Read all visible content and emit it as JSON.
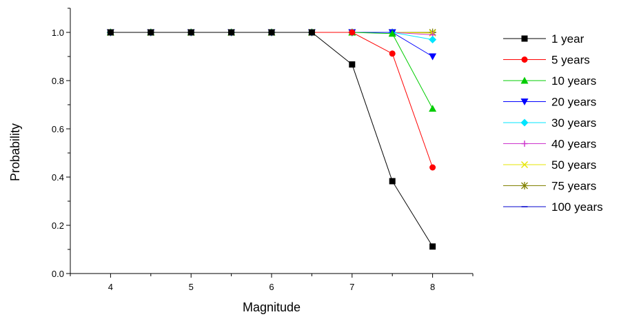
{
  "chart_data": {
    "type": "line",
    "title": "",
    "xlabel": "Magnitude",
    "ylabel": "Probability",
    "xlim": [
      3.5,
      8.5
    ],
    "ylim": [
      0.0,
      1.1
    ],
    "xticks": [
      4,
      5,
      6,
      7,
      8
    ],
    "xtick_labels": [
      "4",
      "5",
      "6",
      "7",
      "8"
    ],
    "yticks": [
      0.0,
      0.2,
      0.4,
      0.6,
      0.8,
      1.0
    ],
    "ytick_labels": [
      "0.0",
      "0.2",
      "0.4",
      "0.6",
      "0.8",
      "1.0"
    ],
    "grid": false,
    "legend_position": "right",
    "x": [
      4,
      4.5,
      5,
      5.5,
      6,
      6.5,
      7,
      7.5,
      8
    ],
    "series": [
      {
        "name": "1 year",
        "color": "#000000",
        "marker": "square",
        "values": [
          1,
          1,
          1,
          1,
          1,
          1,
          0.867,
          0.383,
          0.112
        ]
      },
      {
        "name": "5 years",
        "color": "#ff0000",
        "marker": "circle",
        "values": [
          1,
          1,
          1,
          1,
          1,
          1,
          1.0,
          0.912,
          0.44
        ]
      },
      {
        "name": "10 years",
        "color": "#00cc00",
        "marker": "triangle-up",
        "values": [
          1,
          1,
          1,
          1,
          1,
          1,
          1.0,
          0.995,
          0.684
        ]
      },
      {
        "name": "20 years",
        "color": "#0000ff",
        "marker": "triangle-down",
        "values": [
          1,
          1,
          1,
          1,
          1,
          1,
          1.0,
          1.0,
          0.9
        ]
      },
      {
        "name": "30 years",
        "color": "#00e5ff",
        "marker": "diamond",
        "values": [
          1,
          1,
          1,
          1,
          1,
          1,
          1.0,
          1.0,
          0.97
        ]
      },
      {
        "name": "40 years",
        "color": "#cc33cc",
        "marker": "plus",
        "values": [
          1,
          1,
          1,
          1,
          1,
          1,
          1.0,
          1.0,
          0.99
        ]
      },
      {
        "name": "50 years",
        "color": "#e6e600",
        "marker": "x",
        "values": [
          1,
          1,
          1,
          1,
          1,
          1,
          1.0,
          1.0,
          0.997
        ]
      },
      {
        "name": "75 years",
        "color": "#808000",
        "marker": "star",
        "values": [
          1,
          1,
          1,
          1,
          1,
          1,
          1.0,
          1.0,
          1.0
        ]
      },
      {
        "name": "100 years",
        "color": "#0000cc",
        "marker": "dash",
        "values": [
          1,
          1,
          1,
          1,
          1,
          1,
          1.0,
          1.0,
          1.0
        ]
      }
    ]
  }
}
